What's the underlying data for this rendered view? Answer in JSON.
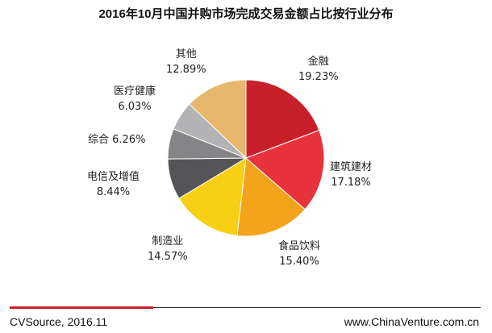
{
  "chart_data": {
    "type": "pie",
    "title": "2016年10月中国并购市场完成交易金额占比按行业分布",
    "slices": [
      {
        "label": "金融",
        "percent_text": "19.23%",
        "value": 19.23,
        "color": "#c8202b"
      },
      {
        "label": "建筑建材",
        "percent_text": "17.18%",
        "value": 17.18,
        "color": "#e8333c"
      },
      {
        "label": "食品饮料",
        "percent_text": "15.40%",
        "value": 15.4,
        "color": "#f4a41b"
      },
      {
        "label": "制造业",
        "percent_text": "14.57%",
        "value": 14.57,
        "color": "#f7cf14"
      },
      {
        "label": "电信及增值",
        "percent_text": "8.44%",
        "value": 8.44,
        "color": "#555558"
      },
      {
        "label": "综合",
        "percent_text": "6.26%",
        "value": 6.26,
        "color": "#858587"
      },
      {
        "label": "医疗健康",
        "percent_text": "6.03%",
        "value": 6.03,
        "color": "#b3b3b6"
      },
      {
        "label": "其他",
        "percent_text": "12.89%",
        "value": 12.89,
        "color": "#e7b86c"
      }
    ]
  },
  "footer": {
    "source": "CVSource, 2016.11",
    "website": "www.ChinaVenture.com.cn"
  }
}
